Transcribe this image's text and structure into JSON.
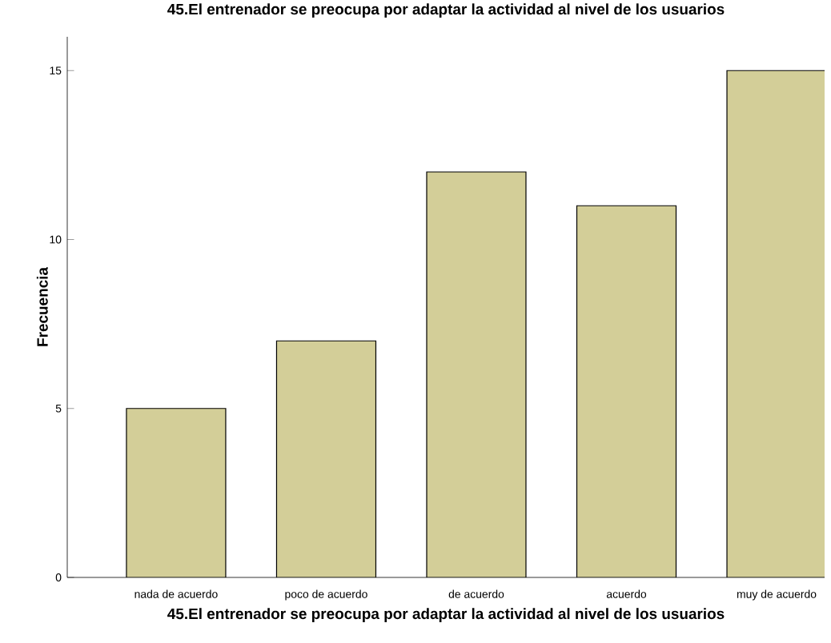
{
  "chart_data": {
    "type": "bar",
    "title": "45.El entrenador se preocupa por adaptar la actividad al nivel de los usuarios",
    "xlabel": "45.El entrenador se preocupa por adaptar la actividad al nivel de los usuarios",
    "ylabel": "Frecuencia",
    "categories": [
      "nada de acuerdo",
      "poco de acuerdo",
      "de acuerdo",
      "acuerdo",
      "muy de acuerdo"
    ],
    "values": [
      5,
      7,
      12,
      11,
      15
    ],
    "color": "#d3ce98",
    "ylim": [
      0,
      16
    ],
    "yticks": [
      0,
      5,
      10,
      15
    ],
    "grid": false
  }
}
